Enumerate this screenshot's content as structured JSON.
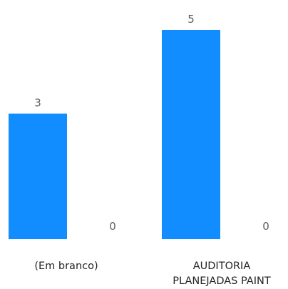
{
  "chart_data": {
    "type": "bar",
    "categories": [
      [
        "(Em branco)"
      ],
      [
        "AUDITORIA",
        "PLANEJADAS PAINT"
      ]
    ],
    "series": [
      {
        "values": [
          3,
          5
        ]
      },
      {
        "values": [
          0,
          0
        ]
      }
    ],
    "data_labels": true,
    "ylim": [
      0,
      5
    ],
    "grid": false,
    "legend": "none",
    "colors": {
      "bar": "#118dff",
      "data_label": "#605e5c",
      "category_label": "#252423"
    }
  }
}
